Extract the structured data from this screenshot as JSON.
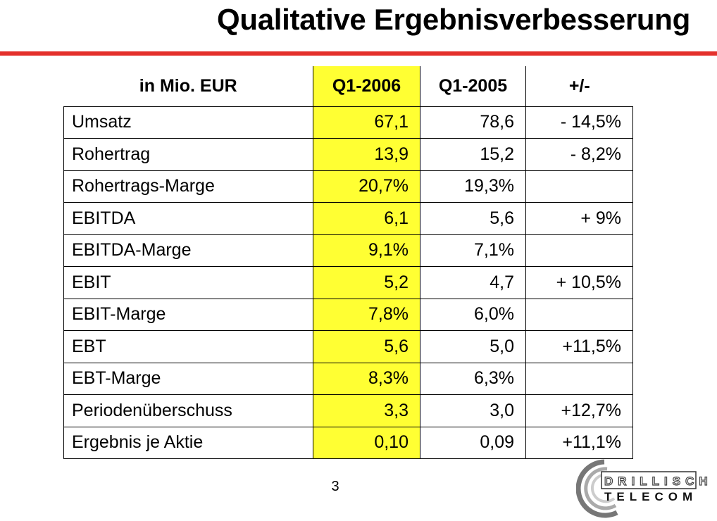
{
  "title": "Qualitative Ergebnisverbesserung",
  "table": {
    "headers": [
      "in Mio. EUR",
      "Q1-2006",
      "Q1-2005",
      "+/-"
    ],
    "rows": [
      [
        "Umsatz",
        "67,1",
        "78,6",
        "- 14,5%"
      ],
      [
        "Rohertrag",
        "13,9",
        "15,2",
        "- 8,2%"
      ],
      [
        "Rohertrags-Marge",
        "20,7%",
        "19,3%",
        ""
      ],
      [
        "EBITDA",
        "6,1",
        "5,6",
        "+ 9%"
      ],
      [
        "EBITDA-Marge",
        "9,1%",
        "7,1%",
        ""
      ],
      [
        "EBIT",
        "5,2",
        "4,7",
        "+ 10,5%"
      ],
      [
        "EBIT-Marge",
        "7,8%",
        "6,0%",
        ""
      ],
      [
        "EBT",
        "5,6",
        "5,0",
        "+11,5%"
      ],
      [
        "EBT-Marge",
        "8,3%",
        "6,3%",
        ""
      ],
      [
        "Periodenüberschuss",
        "3,3",
        "3,0",
        "+12,7%"
      ],
      [
        "Ergebnis je Aktie",
        "0,10",
        "0,09",
        "+11,1%"
      ]
    ]
  },
  "page_number": "3",
  "logo": {
    "line1": "DRILLISCH",
    "line2": "TELECOM"
  },
  "colors": {
    "accent_rule": "#e4302b",
    "highlight": "#ffff33"
  }
}
